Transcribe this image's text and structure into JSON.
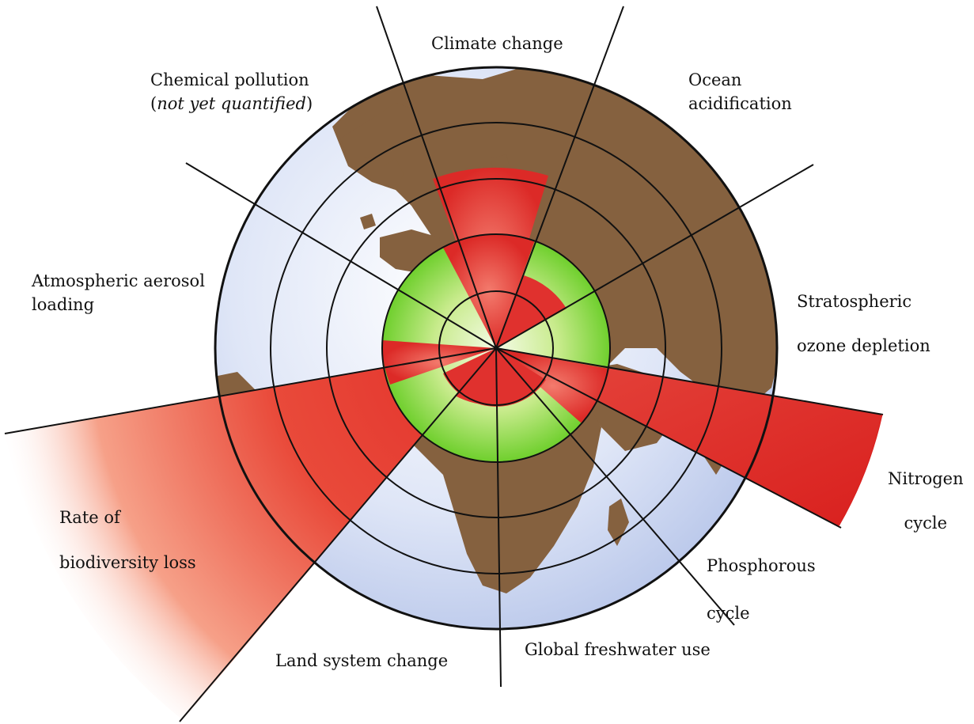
{
  "title": "",
  "colors": {
    "ocean": "#cdd8f2",
    "land": "#85613f",
    "safe_zone": "#7fd43c",
    "exceeded": "#e0312e",
    "outline": "#111111"
  },
  "boundaries": [
    {
      "id": "climate",
      "lines": [
        "Climate change"
      ],
      "status": "exceeded"
    },
    {
      "id": "ocean",
      "lines": [
        "Ocean",
        "acidification"
      ],
      "status": "within"
    },
    {
      "id": "ozone",
      "lines": [
        "Stratospheric",
        "ozone depletion"
      ],
      "status": "within"
    },
    {
      "id": "nitrogen",
      "lines": [
        "Nitrogen",
        "cycle"
      ],
      "status": "exceeded"
    },
    {
      "id": "phosphorus",
      "lines": [
        "Phosphorous",
        "cycle"
      ],
      "status": "within"
    },
    {
      "id": "freshwater",
      "lines": [
        "Global freshwater use"
      ],
      "status": "within"
    },
    {
      "id": "land",
      "lines": [
        "Land system change"
      ],
      "status": "within"
    },
    {
      "id": "biodiversity",
      "lines": [
        "Rate of",
        "biodiversity loss"
      ],
      "status": "exceeded"
    },
    {
      "id": "aerosol",
      "lines": [
        "Atmospheric aerosol",
        "loading"
      ],
      "status": "not quantified"
    },
    {
      "id": "chemical",
      "lines": [
        "Chemical pollution",
        "(",
        "not yet quantified",
        ")"
      ],
      "status": "not quantified"
    }
  ]
}
